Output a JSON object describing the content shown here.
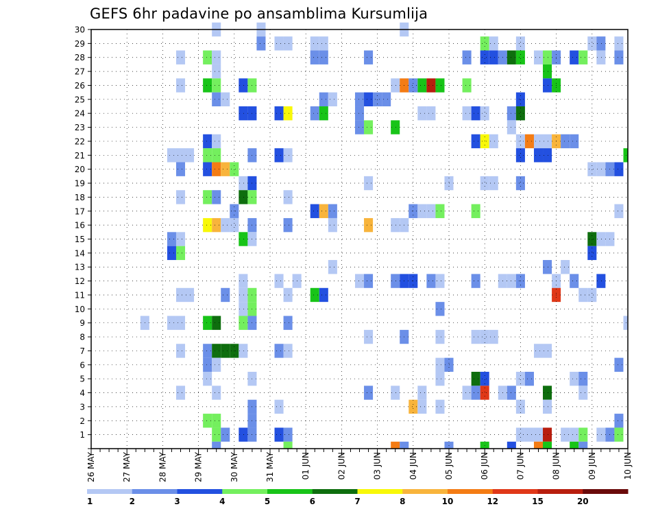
{
  "chart_data": {
    "type": "heatmap",
    "title": "GEFS 6hr padavine po ansamblima Kursumlija",
    "xlabel": "",
    "ylabel": "",
    "x_range": [
      0,
      60
    ],
    "y_range": [
      0,
      30
    ],
    "x_ticks": [
      {
        "i": 0,
        "label": "26 MAY"
      },
      {
        "i": 4,
        "label": "27 MAY"
      },
      {
        "i": 8,
        "label": "28 MAY"
      },
      {
        "i": 12,
        "label": "29 MAY"
      },
      {
        "i": 16,
        "label": "30 MAY"
      },
      {
        "i": 20,
        "label": "31 MAY"
      },
      {
        "i": 24,
        "label": "01 JUN"
      },
      {
        "i": 28,
        "label": "02 JUN"
      },
      {
        "i": 32,
        "label": "03 JUN"
      },
      {
        "i": 36,
        "label": "04 JUN"
      },
      {
        "i": 40,
        "label": "05 JUN"
      },
      {
        "i": 44,
        "label": "06 JUN"
      },
      {
        "i": 48,
        "label": "07 JUN"
      },
      {
        "i": 52,
        "label": "08 JUN"
      },
      {
        "i": 56,
        "label": "09 JUN"
      },
      {
        "i": 60,
        "label": "10 JUN"
      }
    ],
    "y_ticks": [
      1,
      2,
      3,
      4,
      5,
      6,
      7,
      8,
      9,
      10,
      11,
      12,
      13,
      14,
      15,
      16,
      17,
      18,
      19,
      20,
      21,
      22,
      23,
      24,
      25,
      26,
      27,
      28,
      29,
      30
    ],
    "colorbar": {
      "labels": [
        "1",
        "2",
        "3",
        "4",
        "5",
        "6",
        "7",
        "8",
        "10",
        "12",
        "15",
        "20"
      ],
      "colors": [
        "#b4c8f4",
        "#6b8fe8",
        "#2350e0",
        "#74ef5e",
        "#18c418",
        "#0e6e0e",
        "#f8f808",
        "#f8b43c",
        "#f47c14",
        "#e03818",
        "#b81e0e",
        "#6a0a0a"
      ]
    },
    "grid": true,
    "cells": [
      [
        14,
        30,
        1
      ],
      [
        19,
        30,
        1
      ],
      [
        35,
        30,
        1
      ],
      [
        19,
        29,
        2
      ],
      [
        21,
        29,
        1
      ],
      [
        22,
        29,
        1
      ],
      [
        25,
        29,
        1
      ],
      [
        26,
        29,
        1
      ],
      [
        44,
        29,
        4
      ],
      [
        45,
        29,
        1
      ],
      [
        48,
        29,
        1
      ],
      [
        56,
        29,
        1
      ],
      [
        57,
        29,
        2
      ],
      [
        59,
        29,
        1
      ],
      [
        10,
        28,
        1
      ],
      [
        13,
        28,
        4
      ],
      [
        14,
        28,
        1
      ],
      [
        25,
        28,
        2
      ],
      [
        26,
        28,
        2
      ],
      [
        31,
        28,
        2
      ],
      [
        42,
        28,
        2
      ],
      [
        44,
        28,
        3
      ],
      [
        45,
        28,
        3
      ],
      [
        46,
        28,
        2
      ],
      [
        47,
        28,
        6
      ],
      [
        48,
        28,
        5
      ],
      [
        50,
        28,
        1
      ],
      [
        51,
        28,
        4
      ],
      [
        52,
        28,
        2
      ],
      [
        54,
        28,
        3
      ],
      [
        55,
        28,
        4
      ],
      [
        57,
        28,
        1
      ],
      [
        59,
        28,
        2
      ],
      [
        14,
        27,
        1
      ],
      [
        51,
        27,
        5
      ],
      [
        10,
        26,
        1
      ],
      [
        13,
        26,
        5
      ],
      [
        14,
        26,
        4
      ],
      [
        17,
        26,
        3
      ],
      [
        18,
        26,
        4
      ],
      [
        34,
        26,
        1
      ],
      [
        35,
        26,
        9
      ],
      [
        36,
        26,
        2
      ],
      [
        37,
        26,
        5
      ],
      [
        38,
        26,
        11
      ],
      [
        39,
        26,
        5
      ],
      [
        42,
        26,
        4
      ],
      [
        51,
        26,
        3
      ],
      [
        52,
        26,
        5
      ],
      [
        14,
        25,
        2
      ],
      [
        15,
        25,
        1
      ],
      [
        26,
        25,
        2
      ],
      [
        27,
        25,
        1
      ],
      [
        30,
        25,
        2
      ],
      [
        31,
        25,
        3
      ],
      [
        32,
        25,
        2
      ],
      [
        33,
        25,
        2
      ],
      [
        48,
        25,
        3
      ],
      [
        17,
        24,
        3
      ],
      [
        18,
        24,
        3
      ],
      [
        21,
        24,
        3
      ],
      [
        22,
        24,
        7
      ],
      [
        25,
        24,
        2
      ],
      [
        26,
        24,
        5
      ],
      [
        30,
        24,
        2
      ],
      [
        37,
        24,
        1
      ],
      [
        38,
        24,
        1
      ],
      [
        42,
        24,
        1
      ],
      [
        43,
        24,
        3
      ],
      [
        44,
        24,
        1
      ],
      [
        47,
        24,
        2
      ],
      [
        48,
        24,
        6
      ],
      [
        30,
        23,
        2
      ],
      [
        31,
        23,
        4
      ],
      [
        34,
        23,
        5
      ],
      [
        47,
        23,
        1
      ],
      [
        13,
        22,
        3
      ],
      [
        14,
        22,
        1
      ],
      [
        43,
        22,
        3
      ],
      [
        44,
        22,
        7
      ],
      [
        45,
        22,
        1
      ],
      [
        48,
        22,
        1
      ],
      [
        49,
        22,
        9
      ],
      [
        50,
        22,
        1
      ],
      [
        51,
        22,
        1
      ],
      [
        52,
        22,
        8
      ],
      [
        53,
        22,
        2
      ],
      [
        54,
        22,
        2
      ],
      [
        9,
        21,
        1
      ],
      [
        10,
        21,
        1
      ],
      [
        11,
        21,
        1
      ],
      [
        13,
        21,
        4
      ],
      [
        14,
        21,
        4
      ],
      [
        18,
        21,
        2
      ],
      [
        21,
        21,
        3
      ],
      [
        22,
        21,
        1
      ],
      [
        48,
        21,
        3
      ],
      [
        50,
        21,
        3
      ],
      [
        51,
        21,
        3
      ],
      [
        60,
        21,
        5
      ],
      [
        10,
        20,
        2
      ],
      [
        13,
        20,
        3
      ],
      [
        14,
        20,
        9
      ],
      [
        15,
        20,
        8
      ],
      [
        16,
        20,
        4
      ],
      [
        56,
        20,
        1
      ],
      [
        57,
        20,
        1
      ],
      [
        58,
        20,
        2
      ],
      [
        59,
        20,
        3
      ],
      [
        17,
        19,
        1
      ],
      [
        18,
        19,
        3
      ],
      [
        31,
        19,
        1
      ],
      [
        40,
        19,
        1
      ],
      [
        44,
        19,
        1
      ],
      [
        45,
        19,
        1
      ],
      [
        48,
        19,
        2
      ],
      [
        10,
        18,
        1
      ],
      [
        13,
        18,
        4
      ],
      [
        14,
        18,
        2
      ],
      [
        17,
        18,
        6
      ],
      [
        18,
        18,
        4
      ],
      [
        22,
        18,
        1
      ],
      [
        16,
        17,
        2
      ],
      [
        25,
        17,
        3
      ],
      [
        26,
        17,
        8
      ],
      [
        27,
        17,
        2
      ],
      [
        36,
        17,
        2
      ],
      [
        37,
        17,
        1
      ],
      [
        38,
        17,
        1
      ],
      [
        39,
        17,
        4
      ],
      [
        43,
        17,
        4
      ],
      [
        59,
        17,
        1
      ],
      [
        13,
        16,
        7
      ],
      [
        14,
        16,
        8
      ],
      [
        15,
        16,
        1
      ],
      [
        16,
        16,
        1
      ],
      [
        18,
        16,
        2
      ],
      [
        22,
        16,
        2
      ],
      [
        27,
        16,
        1
      ],
      [
        31,
        16,
        8
      ],
      [
        34,
        16,
        1
      ],
      [
        35,
        16,
        1
      ],
      [
        9,
        15,
        2
      ],
      [
        10,
        15,
        1
      ],
      [
        17,
        15,
        5
      ],
      [
        18,
        15,
        1
      ],
      [
        56,
        15,
        6
      ],
      [
        57,
        15,
        1
      ],
      [
        58,
        15,
        1
      ],
      [
        9,
        14,
        3
      ],
      [
        10,
        14,
        4
      ],
      [
        56,
        14,
        3
      ],
      [
        27,
        13,
        1
      ],
      [
        51,
        13,
        2
      ],
      [
        53,
        13,
        1
      ],
      [
        17,
        12,
        1
      ],
      [
        21,
        12,
        1
      ],
      [
        23,
        12,
        1
      ],
      [
        30,
        12,
        1
      ],
      [
        31,
        12,
        2
      ],
      [
        34,
        12,
        2
      ],
      [
        35,
        12,
        3
      ],
      [
        36,
        12,
        3
      ],
      [
        38,
        12,
        2
      ],
      [
        39,
        12,
        1
      ],
      [
        43,
        12,
        2
      ],
      [
        46,
        12,
        1
      ],
      [
        47,
        12,
        1
      ],
      [
        48,
        12,
        2
      ],
      [
        52,
        12,
        1
      ],
      [
        54,
        12,
        2
      ],
      [
        57,
        12,
        3
      ],
      [
        10,
        11,
        1
      ],
      [
        11,
        11,
        1
      ],
      [
        15,
        11,
        2
      ],
      [
        17,
        11,
        1
      ],
      [
        18,
        11,
        4
      ],
      [
        22,
        11,
        1
      ],
      [
        25,
        11,
        5
      ],
      [
        26,
        11,
        3
      ],
      [
        52,
        11,
        10
      ],
      [
        55,
        11,
        1
      ],
      [
        56,
        11,
        1
      ],
      [
        17,
        10,
        1
      ],
      [
        18,
        10,
        4
      ],
      [
        39,
        10,
        2
      ],
      [
        6,
        9,
        1
      ],
      [
        9,
        9,
        1
      ],
      [
        10,
        9,
        1
      ],
      [
        13,
        9,
        5
      ],
      [
        14,
        9,
        6
      ],
      [
        17,
        9,
        4
      ],
      [
        18,
        9,
        2
      ],
      [
        22,
        9,
        2
      ],
      [
        60,
        9,
        1
      ],
      [
        31,
        8,
        1
      ],
      [
        35,
        8,
        2
      ],
      [
        39,
        8,
        1
      ],
      [
        43,
        8,
        1
      ],
      [
        44,
        8,
        1
      ],
      [
        45,
        8,
        1
      ],
      [
        10,
        7,
        1
      ],
      [
        13,
        7,
        2
      ],
      [
        14,
        7,
        6
      ],
      [
        15,
        7,
        6
      ],
      [
        16,
        7,
        6
      ],
      [
        17,
        7,
        1
      ],
      [
        21,
        7,
        2
      ],
      [
        22,
        7,
        1
      ],
      [
        50,
        7,
        1
      ],
      [
        51,
        7,
        1
      ],
      [
        13,
        6,
        2
      ],
      [
        14,
        6,
        1
      ],
      [
        39,
        6,
        1
      ],
      [
        40,
        6,
        2
      ],
      [
        59,
        6,
        2
      ],
      [
        13,
        5,
        1
      ],
      [
        18,
        5,
        1
      ],
      [
        39,
        5,
        1
      ],
      [
        43,
        5,
        6
      ],
      [
        44,
        5,
        3
      ],
      [
        48,
        5,
        1
      ],
      [
        49,
        5,
        2
      ],
      [
        54,
        5,
        1
      ],
      [
        55,
        5,
        2
      ],
      [
        10,
        4,
        1
      ],
      [
        14,
        4,
        1
      ],
      [
        31,
        4,
        2
      ],
      [
        34,
        4,
        1
      ],
      [
        37,
        4,
        1
      ],
      [
        42,
        4,
        1
      ],
      [
        43,
        4,
        2
      ],
      [
        44,
        4,
        10
      ],
      [
        46,
        4,
        1
      ],
      [
        47,
        4,
        2
      ],
      [
        51,
        4,
        6
      ],
      [
        55,
        4,
        1
      ],
      [
        18,
        3,
        2
      ],
      [
        21,
        3,
        1
      ],
      [
        36,
        3,
        8
      ],
      [
        37,
        3,
        1
      ],
      [
        39,
        3,
        1
      ],
      [
        48,
        3,
        1
      ],
      [
        51,
        3,
        1
      ],
      [
        13,
        2,
        4
      ],
      [
        14,
        2,
        4
      ],
      [
        18,
        2,
        2
      ],
      [
        59,
        2,
        2
      ],
      [
        14,
        1,
        4
      ],
      [
        15,
        1,
        2
      ],
      [
        17,
        1,
        3
      ],
      [
        18,
        1,
        2
      ],
      [
        21,
        1,
        3
      ],
      [
        22,
        1,
        2
      ],
      [
        48,
        1,
        1
      ],
      [
        49,
        1,
        1
      ],
      [
        50,
        1,
        1
      ],
      [
        51,
        1,
        11
      ],
      [
        53,
        1,
        1
      ],
      [
        54,
        1,
        1
      ],
      [
        55,
        1,
        4
      ],
      [
        57,
        1,
        1
      ],
      [
        58,
        1,
        2
      ],
      [
        59,
        1,
        4
      ],
      [
        14,
        0,
        2
      ],
      [
        22,
        0,
        4
      ],
      [
        34,
        0,
        9
      ],
      [
        35,
        0,
        2
      ],
      [
        40,
        0,
        2
      ],
      [
        44,
        0,
        5
      ],
      [
        47,
        0,
        3
      ],
      [
        50,
        0,
        9
      ],
      [
        51,
        0,
        5
      ],
      [
        54,
        0,
        5
      ],
      [
        55,
        0,
        2
      ]
    ]
  }
}
